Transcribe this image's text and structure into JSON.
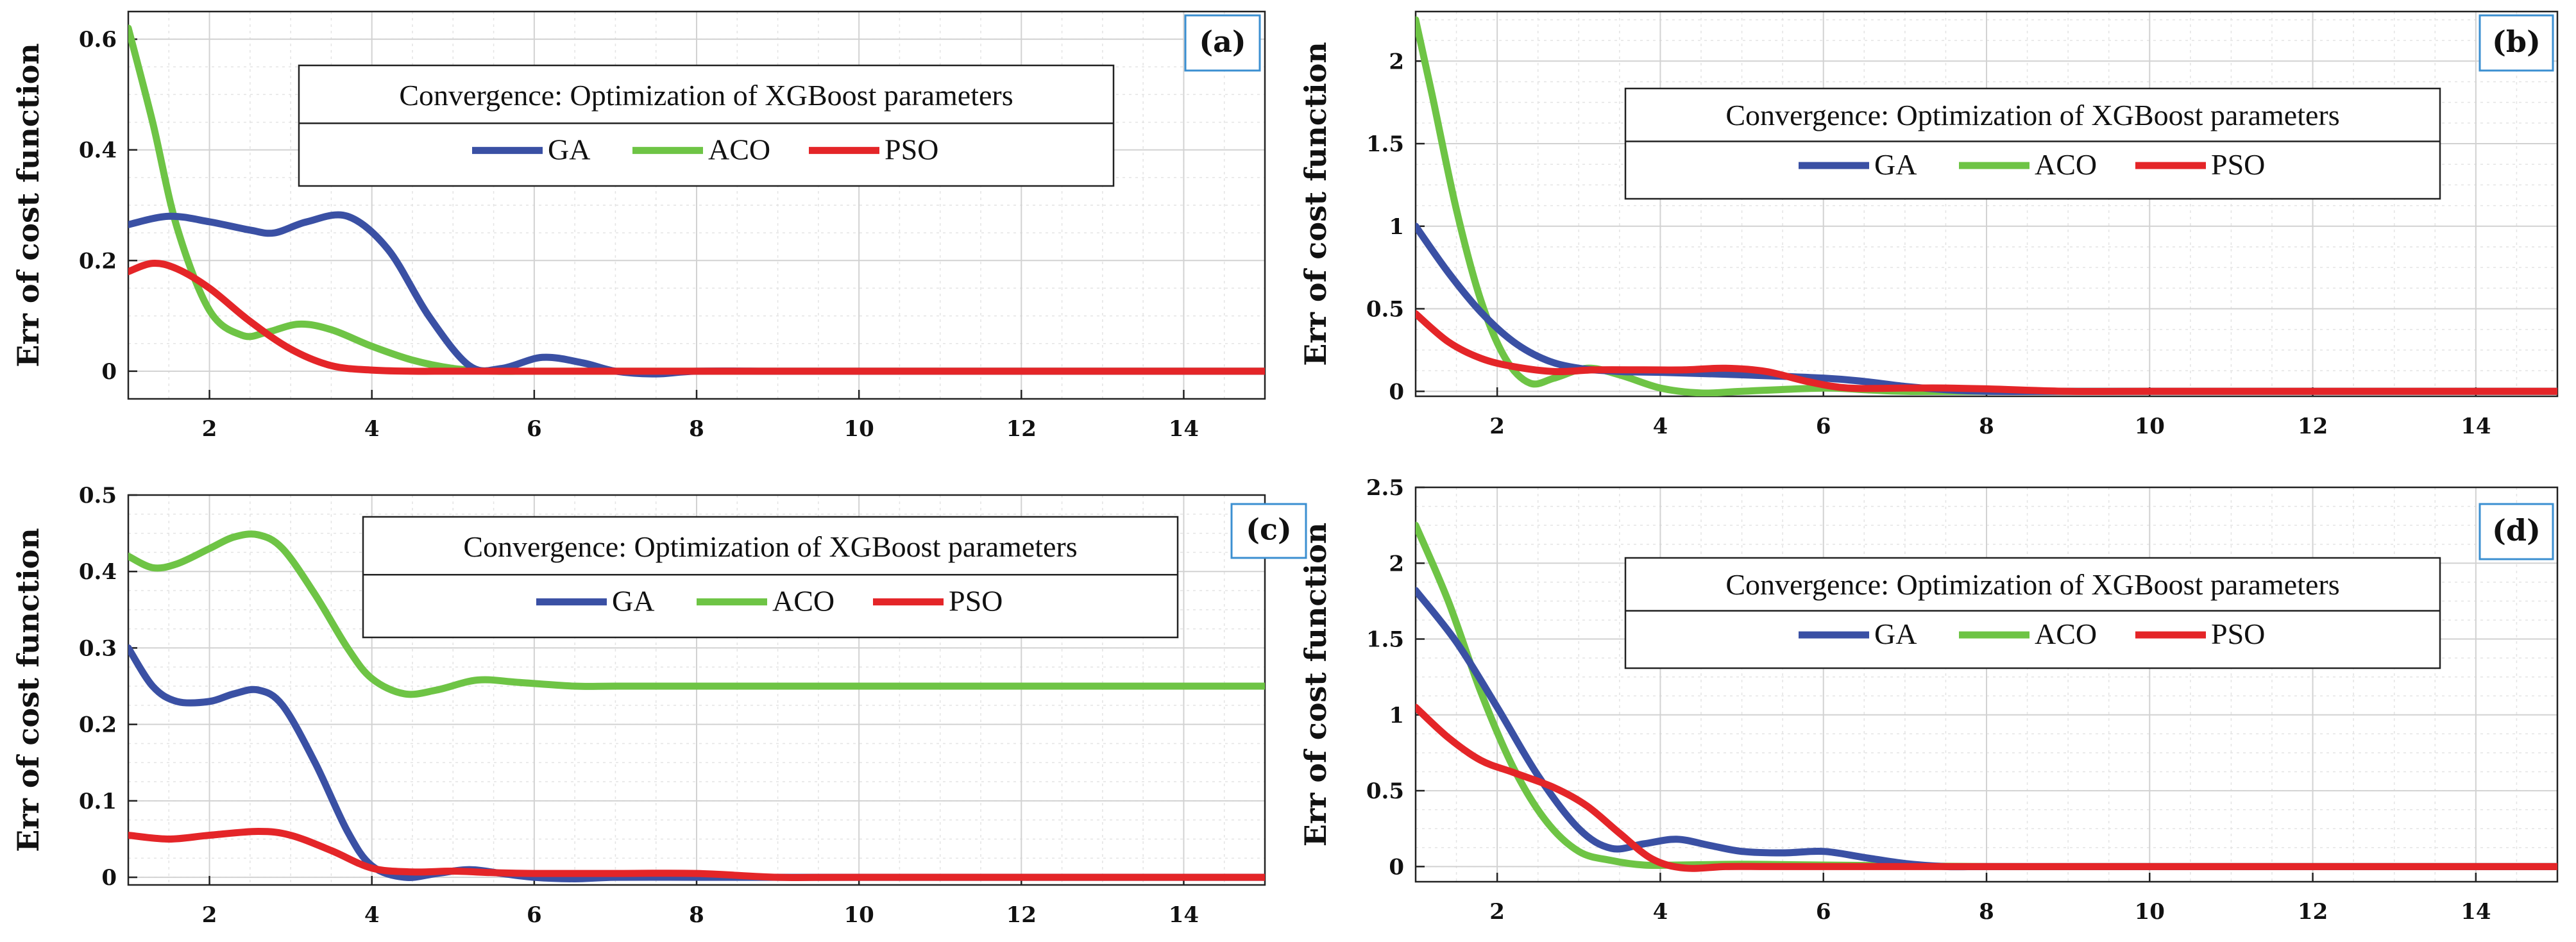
{
  "figure": {
    "ylabel": "Err of cost function",
    "legend_title": "Convergence: Optimization of XGBoost parameters"
  },
  "colors": {
    "GA": "#3a50a4",
    "ACO": "#6ec445",
    "PSO": "#e42528"
  },
  "chart_data": [
    {
      "type": "line",
      "panel": "(a)",
      "title": "Convergence: Optimization of XGBoost parameters",
      "xlabel": "",
      "ylabel": "Err of cost function",
      "xlim": [
        1,
        15
      ],
      "ylim": [
        -0.05,
        0.65
      ],
      "xticks": [
        2,
        4,
        6,
        8,
        10,
        12,
        14
      ],
      "xtick_labels": [
        "2",
        "4",
        "6",
        "8",
        "10",
        "12",
        "14"
      ],
      "yticks": [
        0,
        0.2,
        0.4,
        0.6
      ],
      "ytick_labels": [
        "0",
        "0.2",
        "0.4",
        "0.6"
      ],
      "legend_position": "top-center",
      "grid": true,
      "series": [
        {
          "name": "GA",
          "x": [
            1,
            1.5,
            2,
            2.5,
            2.8,
            3.2,
            3.7,
            4.2,
            4.7,
            5.2,
            5.6,
            6.1,
            6.6,
            7,
            7.5,
            8,
            9,
            10,
            15
          ],
          "values": [
            0.265,
            0.28,
            0.27,
            0.255,
            0.25,
            0.27,
            0.28,
            0.22,
            0.1,
            0.01,
            0.005,
            0.025,
            0.015,
            0.0,
            -0.005,
            0.0,
            0.0,
            0.0,
            0.0
          ]
        },
        {
          "name": "ACO",
          "x": [
            1,
            1.3,
            1.6,
            2,
            2.4,
            2.7,
            3.1,
            3.5,
            4,
            4.5,
            5,
            5.5,
            6,
            7,
            8,
            10,
            15
          ],
          "values": [
            0.62,
            0.45,
            0.26,
            0.11,
            0.065,
            0.07,
            0.085,
            0.075,
            0.045,
            0.02,
            0.005,
            0.0,
            0.0,
            0.0,
            0.0,
            0.0,
            0.0
          ]
        },
        {
          "name": "PSO",
          "x": [
            1,
            1.3,
            1.6,
            2,
            2.5,
            3,
            3.5,
            4,
            4.5,
            5,
            6,
            8,
            10,
            15
          ],
          "values": [
            0.18,
            0.195,
            0.185,
            0.15,
            0.09,
            0.04,
            0.01,
            0.002,
            0.0,
            0.0,
            0.0,
            0.0,
            0.0,
            0.0
          ]
        }
      ]
    },
    {
      "type": "line",
      "panel": "(b)",
      "title": "Convergence: Optimization of XGBoost parameters",
      "xlabel": "",
      "ylabel": "Err of cost function",
      "xlim": [
        1,
        15
      ],
      "ylim": [
        -0.03,
        2.3
      ],
      "xticks": [
        2,
        4,
        6,
        8,
        10,
        12,
        14
      ],
      "xtick_labels": [
        "2",
        "4",
        "6",
        "8",
        "10",
        "12",
        "14"
      ],
      "yticks": [
        0,
        0.5,
        1,
        1.5,
        2
      ],
      "ytick_labels": [
        "0",
        "0.5",
        "1",
        "1.5",
        "2"
      ],
      "legend_position": "top-center",
      "grid": true,
      "series": [
        {
          "name": "GA",
          "x": [
            1,
            1.4,
            1.8,
            2.2,
            2.6,
            3,
            3.5,
            4,
            5,
            6,
            6.5,
            7,
            7.5,
            8,
            9,
            10,
            15
          ],
          "values": [
            1.0,
            0.72,
            0.48,
            0.3,
            0.19,
            0.14,
            0.12,
            0.115,
            0.1,
            0.08,
            0.06,
            0.03,
            0.01,
            0.0,
            0.0,
            0.0,
            0.0
          ]
        },
        {
          "name": "ACO",
          "x": [
            1,
            1.2,
            1.5,
            1.8,
            2.1,
            2.4,
            2.7,
            3.1,
            3.5,
            4,
            4.5,
            5,
            6,
            6.5,
            7,
            8,
            15
          ],
          "values": [
            2.25,
            1.8,
            1.1,
            0.55,
            0.2,
            0.05,
            0.08,
            0.14,
            0.1,
            0.02,
            -0.01,
            0.0,
            0.02,
            0.01,
            0.0,
            0.0,
            0.0
          ]
        },
        {
          "name": "PSO",
          "x": [
            1,
            1.4,
            1.8,
            2.2,
            2.7,
            3.2,
            3.8,
            4.3,
            4.8,
            5.3,
            5.8,
            6.3,
            7,
            7.5,
            8,
            9,
            10,
            15
          ],
          "values": [
            0.47,
            0.3,
            0.2,
            0.15,
            0.12,
            0.13,
            0.13,
            0.13,
            0.14,
            0.12,
            0.06,
            0.02,
            0.02,
            0.02,
            0.015,
            0.0,
            0.0,
            0.0
          ]
        }
      ]
    },
    {
      "type": "line",
      "panel": "(c)",
      "title": "Convergence: Optimization of XGBoost parameters",
      "xlabel": "",
      "ylabel": "Err of cost function",
      "xlim": [
        1,
        15
      ],
      "ylim": [
        -0.01,
        0.5
      ],
      "xticks": [
        2,
        4,
        6,
        8,
        10,
        12,
        14
      ],
      "xtick_labels": [
        "2",
        "4",
        "6",
        "8",
        "10",
        "12",
        "14"
      ],
      "yticks": [
        0,
        0.1,
        0.2,
        0.3,
        0.4,
        0.5
      ],
      "ytick_labels": [
        "0",
        "0.1",
        "0.2",
        "0.3",
        "0.4",
        "0.5"
      ],
      "legend_position": "top-center",
      "grid": true,
      "series": [
        {
          "name": "GA",
          "x": [
            1,
            1.3,
            1.6,
            2,
            2.3,
            2.6,
            2.9,
            3.3,
            3.7,
            4,
            4.4,
            4.8,
            5.2,
            5.6,
            6,
            6.5,
            7,
            8,
            9,
            10,
            15
          ],
          "values": [
            0.3,
            0.25,
            0.23,
            0.23,
            0.24,
            0.245,
            0.225,
            0.15,
            0.06,
            0.015,
            0.0,
            0.005,
            0.01,
            0.005,
            0.0,
            -0.002,
            0.0,
            0.0,
            0.0,
            0.0,
            0.0
          ]
        },
        {
          "name": "ACO",
          "x": [
            1,
            1.3,
            1.6,
            2,
            2.3,
            2.6,
            2.9,
            3.3,
            3.7,
            4,
            4.4,
            4.8,
            5.3,
            5.8,
            6.5,
            7,
            8,
            10,
            15
          ],
          "values": [
            0.42,
            0.405,
            0.41,
            0.43,
            0.445,
            0.448,
            0.43,
            0.37,
            0.3,
            0.26,
            0.24,
            0.245,
            0.258,
            0.255,
            0.25,
            0.25,
            0.25,
            0.25,
            0.25
          ]
        },
        {
          "name": "PSO",
          "x": [
            1,
            1.5,
            2,
            2.6,
            3,
            3.5,
            4,
            4.5,
            5,
            5.5,
            6,
            7,
            8,
            9,
            10,
            15
          ],
          "values": [
            0.055,
            0.05,
            0.055,
            0.06,
            0.055,
            0.035,
            0.012,
            0.007,
            0.008,
            0.006,
            0.005,
            0.005,
            0.005,
            0.0,
            0.0,
            0.0
          ]
        }
      ]
    },
    {
      "type": "line",
      "panel": "(d)",
      "title": "Convergence: Optimization of XGBoost parameters",
      "xlabel": "",
      "ylabel": "Err of cost function",
      "xlim": [
        1,
        15
      ],
      "ylim": [
        -0.1,
        2.5
      ],
      "xticks": [
        2,
        4,
        6,
        8,
        10,
        12,
        14
      ],
      "xtick_labels": [
        "2",
        "4",
        "6",
        "8",
        "10",
        "12",
        "14"
      ],
      "yticks": [
        0,
        0.5,
        1,
        1.5,
        2,
        2.5
      ],
      "ytick_labels": [
        "0",
        "0.5",
        "1",
        "1.5",
        "2",
        "2.5"
      ],
      "legend_position": "top-center",
      "grid": true,
      "series": [
        {
          "name": "GA",
          "x": [
            1,
            1.5,
            2,
            2.5,
            3,
            3.4,
            3.8,
            4.2,
            4.6,
            5,
            5.5,
            6,
            6.5,
            7,
            7.5,
            8,
            9,
            10,
            15
          ],
          "values": [
            1.82,
            1.48,
            1.05,
            0.6,
            0.25,
            0.12,
            0.15,
            0.18,
            0.14,
            0.1,
            0.09,
            0.1,
            0.06,
            0.02,
            0.0,
            0.0,
            0.0,
            0.0,
            0.0
          ]
        },
        {
          "name": "ACO",
          "x": [
            1,
            1.4,
            1.8,
            2.2,
            2.6,
            3,
            3.4,
            3.8,
            4.2,
            5,
            6,
            8,
            10,
            15
          ],
          "values": [
            2.25,
            1.75,
            1.15,
            0.65,
            0.3,
            0.1,
            0.04,
            0.01,
            0.01,
            0.015,
            0.01,
            0.0,
            0.0,
            0.0
          ]
        },
        {
          "name": "PSO",
          "x": [
            1,
            1.4,
            1.8,
            2.2,
            2.7,
            3.1,
            3.5,
            3.9,
            4.3,
            4.8,
            5.3,
            6,
            7,
            8,
            10,
            15
          ],
          "values": [
            1.05,
            0.85,
            0.7,
            0.62,
            0.52,
            0.4,
            0.22,
            0.05,
            -0.01,
            0.0,
            0.0,
            0.0,
            0.0,
            0.0,
            0.0,
            0.0
          ]
        }
      ]
    }
  ]
}
